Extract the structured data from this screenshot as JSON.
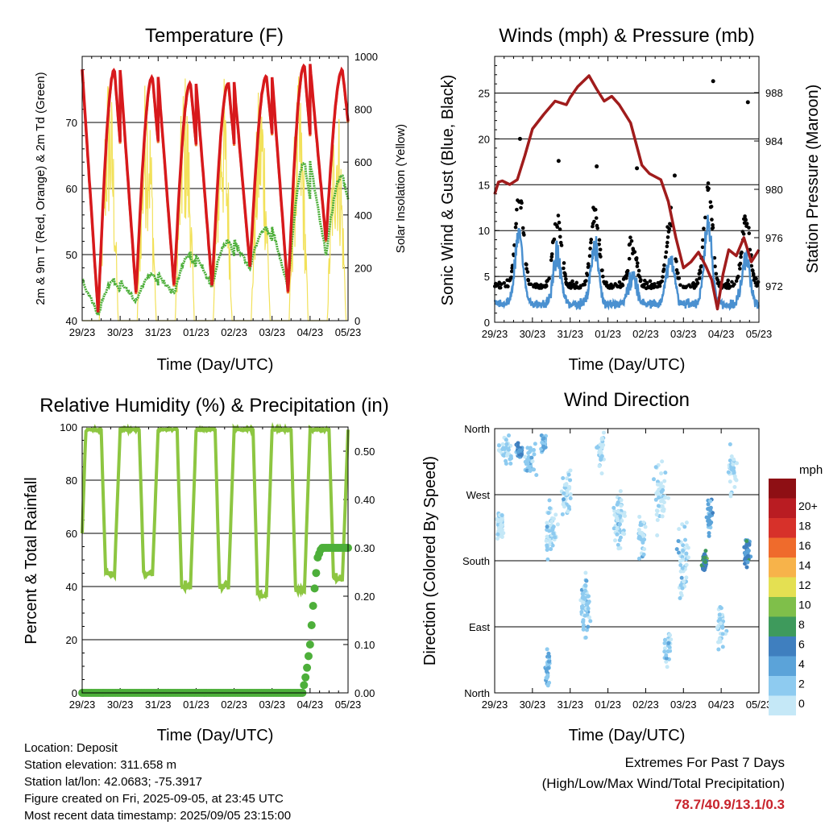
{
  "info": {
    "location": "Location: Deposit",
    "elevation": "Station elevation: 311.658 m",
    "latlon": "Station lat/lon: 42.0683; -75.3917",
    "created": "Figure created on Fri, 2025-09-05, at 23:45 UTC",
    "latest": "Most recent data timestamp: 2025/09/05 23:15:00"
  },
  "extremes": {
    "title": "Extremes For Past 7 Days",
    "subtitle": "(High/Low/Max Wind/Total Precipitation)",
    "values": "78.7/40.9/13.1/0.3"
  },
  "colors": {
    "temp_2m": "#e8732a",
    "temp_9m": "#d7191c",
    "dewpoint": "#4daf3a",
    "solar": "#f2e15a",
    "wind": "#4a90d0",
    "gust": "#000000",
    "pressure": "#a01c1c",
    "rh": "#8dc641",
    "precip": "#4daf3a"
  },
  "chart_data": [
    {
      "type": "line",
      "title": "Temperature (F)",
      "xlabel": "Time (Day/UTC)",
      "ylabel": "2m & 9m T (Red, Orange) & 2m Td (Green)",
      "ylabel_right": "Solar Insolation (Yellow)",
      "x_ticks": [
        "29/23",
        "30/23",
        "31/23",
        "01/23",
        "02/23",
        "03/23",
        "04/23",
        "05/23"
      ],
      "xlim": [
        0,
        7
      ],
      "ylim": [
        40,
        80
      ],
      "y_ticks": [
        40,
        50,
        60,
        70
      ],
      "ylim_right": [
        0,
        1000
      ],
      "y_ticks_right": [
        0,
        200,
        400,
        600,
        800,
        1000
      ],
      "grid": true,
      "daily_extremes": {
        "temp_high": [
          78,
          77,
          76,
          76,
          77,
          78.7,
          78
        ],
        "temp_low": [
          41,
          44,
          45,
          45,
          48,
          44,
          52
        ],
        "dew_high": [
          46,
          47,
          50,
          52,
          54,
          64,
          62
        ],
        "dew_low": [
          41,
          43,
          44,
          45,
          48,
          45,
          50
        ],
        "solar_peak": [
          980,
          970,
          960,
          960,
          950,
          930,
          880
        ]
      }
    },
    {
      "type": "line",
      "title": "Winds (mph) & Pressure (mb)",
      "xlabel": "Time (Day/UTC)",
      "ylabel": "Sonic Wind & Gust (Blue, Black)",
      "ylabel_right": "Station Pressure (Maroon)",
      "x_ticks": [
        "29/23",
        "30/23",
        "31/23",
        "01/23",
        "02/23",
        "03/23",
        "04/23",
        "05/23"
      ],
      "xlim": [
        0,
        7
      ],
      "ylim": [
        0,
        29
      ],
      "y_ticks": [
        0,
        5,
        10,
        15,
        20,
        25
      ],
      "ylim_right": [
        969,
        991
      ],
      "y_ticks_right": [
        972,
        976,
        980,
        984,
        988
      ],
      "grid": true,
      "pressure": {
        "x": [
          0,
          0.1,
          0.2,
          0.4,
          0.6,
          0.8,
          1.0,
          1.3,
          1.6,
          1.9,
          2.0,
          2.2,
          2.5,
          2.7,
          2.9,
          3.1,
          3.3,
          3.6,
          3.9,
          4.1,
          4.4,
          4.6,
          4.8,
          5.0,
          5.2,
          5.4,
          5.6,
          5.75,
          5.9,
          6.05,
          6.2,
          6.4,
          6.6,
          6.8,
          7.0
        ],
        "values": [
          979.6,
          980.6,
          980.7,
          980.4,
          980.8,
          982.8,
          985.0,
          986.2,
          987.3,
          987.0,
          987.6,
          988.5,
          989.4,
          988.3,
          987.3,
          987.7,
          987.0,
          985.5,
          982.0,
          981.3,
          980.8,
          979.0,
          976.0,
          973.5,
          974.0,
          974.8,
          973.6,
          972.5,
          970.1,
          973.0,
          975.0,
          974.5,
          976.0,
          974.0,
          975.0
        ]
      },
      "wind_daily_peak": [
        12,
        9,
        10,
        6,
        9,
        13.1,
        9
      ],
      "gust_daily_peak": [
        20,
        17.6,
        17,
        16.8,
        16,
        26.3,
        24
      ],
      "gust_max": 26.3
    },
    {
      "type": "line",
      "title": "Relative Humidity (%) & Precipitation (in)",
      "xlabel": "Time (Day/UTC)",
      "ylabel": "Percent & Total Rainfall",
      "x_ticks": [
        "29/23",
        "30/23",
        "31/23",
        "01/23",
        "02/23",
        "03/23",
        "04/23",
        "05/23"
      ],
      "xlim": [
        0,
        7
      ],
      "ylim": [
        0,
        100
      ],
      "y_ticks": [
        0,
        20,
        40,
        60,
        80,
        100
      ],
      "ylim_right": [
        0,
        0.55
      ],
      "y_ticks_right": [
        "0.00",
        "0.10",
        "0.20",
        "0.30",
        "0.40",
        "0.50"
      ],
      "grid": true,
      "rh_daily_min": [
        44,
        44,
        39,
        39,
        36,
        38,
        42
      ],
      "precip": {
        "x": [
          0,
          5.8,
          5.85,
          5.9,
          5.95,
          6.0,
          6.05,
          6.1,
          6.15,
          6.2,
          6.3,
          6.5,
          7.0
        ],
        "values": [
          0,
          0,
          0.02,
          0.04,
          0.07,
          0.1,
          0.15,
          0.2,
          0.24,
          0.28,
          0.3,
          0.3,
          0.3
        ]
      }
    },
    {
      "type": "scatter",
      "title": "Wind Direction",
      "xlabel": "Time (Day/UTC)",
      "ylabel": "Direction (Colored By Speed)",
      "x_ticks": [
        "29/23",
        "30/23",
        "31/23",
        "01/23",
        "02/23",
        "03/23",
        "04/23",
        "05/23"
      ],
      "xlim": [
        0,
        7
      ],
      "y_ticks": [
        "North",
        "East",
        "South",
        "West",
        "North"
      ],
      "ylim": [
        0,
        360
      ],
      "colorbar_title": "mph",
      "colorbar_labels": [
        "0",
        "2",
        "4",
        "6",
        "8",
        "10",
        "12",
        "14",
        "16",
        "18",
        "20+"
      ],
      "colorbar_colors": [
        "#c5e8f7",
        "#8ecbf0",
        "#5ba3d9",
        "#3f7fbf",
        "#3e9a5c",
        "#7fbf4a",
        "#e4e052",
        "#f7b34a",
        "#ef6b2c",
        "#d7312a",
        "#b91c22",
        "#8e0f14"
      ]
    }
  ]
}
